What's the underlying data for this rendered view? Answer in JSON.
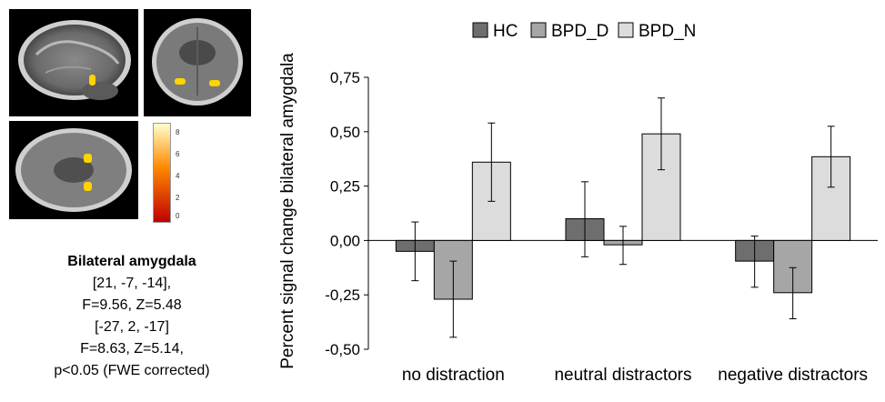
{
  "colors": {
    "HC": "#6e6e6e",
    "BPD_D": "#a6a6a6",
    "BPD_N": "#dcdcdc",
    "activation": "#ffd400",
    "colorbar_top": "#ffffcc",
    "colorbar_mid": "#ff8800",
    "colorbar_bottom": "#c00000"
  },
  "left_panel": {
    "colorbar_ticks": [
      "8",
      "6",
      "4",
      "2",
      "0"
    ],
    "caption": {
      "title": "Bilateral amygdala",
      "lines": [
        "[21, -7, -14],",
        "F=9.56, Z=5.48",
        "[-27, 2, -17]",
        "F=8.63, Z=5.14,",
        "p<0.05 (FWE corrected)"
      ]
    }
  },
  "chart_data": {
    "type": "bar",
    "title": "",
    "xlabel": "",
    "ylabel": "Percent signal change bilateral amygdala",
    "categories": [
      "no distraction",
      "neutral distractors",
      "negative distractors"
    ],
    "series": [
      {
        "name": "HC",
        "values": [
          -0.05,
          0.1,
          -0.095
        ],
        "err_low": [
          -0.185,
          -0.075,
          -0.215
        ],
        "err_high": [
          0.085,
          0.27,
          0.02
        ]
      },
      {
        "name": "BPD_D",
        "values": [
          -0.27,
          -0.02,
          -0.24
        ],
        "err_low": [
          -0.445,
          -0.11,
          -0.36
        ],
        "err_high": [
          -0.095,
          0.065,
          -0.125
        ]
      },
      {
        "name": "BPD_N",
        "values": [
          0.36,
          0.49,
          0.385
        ],
        "err_low": [
          0.18,
          0.325,
          0.245
        ],
        "err_high": [
          0.54,
          0.655,
          0.525
        ]
      }
    ],
    "ylim": [
      -0.5,
      0.75
    ],
    "yticks": [
      "-0,50",
      "-0,25",
      "0,00",
      "0,25",
      "0,50",
      "0,75"
    ],
    "ytick_values": [
      -0.5,
      -0.25,
      0,
      0.25,
      0.5,
      0.75
    ],
    "legend_position": "top",
    "grid": false
  }
}
